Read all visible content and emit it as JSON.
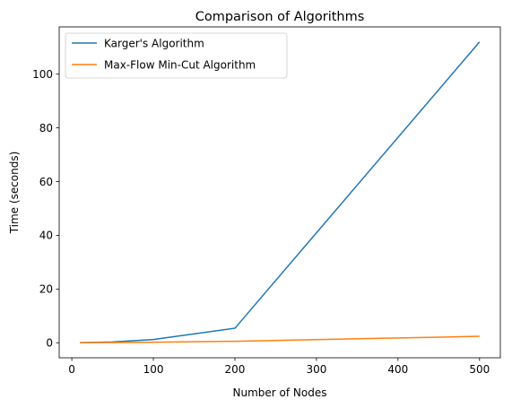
{
  "chart_data": {
    "type": "line",
    "title": "Comparison of Algorithms",
    "xlabel": "Number of Nodes",
    "ylabel": "Time (seconds)",
    "x": [
      10,
      50,
      100,
      200,
      500
    ],
    "series": [
      {
        "name": "Karger's Algorithm",
        "color": "#1f77b4",
        "values": [
          0.05,
          0.3,
          1.2,
          5.4,
          112.0
        ]
      },
      {
        "name": "Max-Flow Min-Cut Algorithm",
        "color": "#ff7f0e",
        "values": [
          0.02,
          0.08,
          0.2,
          0.55,
          2.4
        ]
      }
    ],
    "xlim": [
      -15.5,
      525.5
    ],
    "ylim": [
      -5.6,
      117.6
    ],
    "xticks": [
      0,
      100,
      200,
      300,
      400,
      500
    ],
    "yticks": [
      0,
      20,
      40,
      60,
      80,
      100
    ],
    "grid": false,
    "legend_position": "top-left"
  }
}
